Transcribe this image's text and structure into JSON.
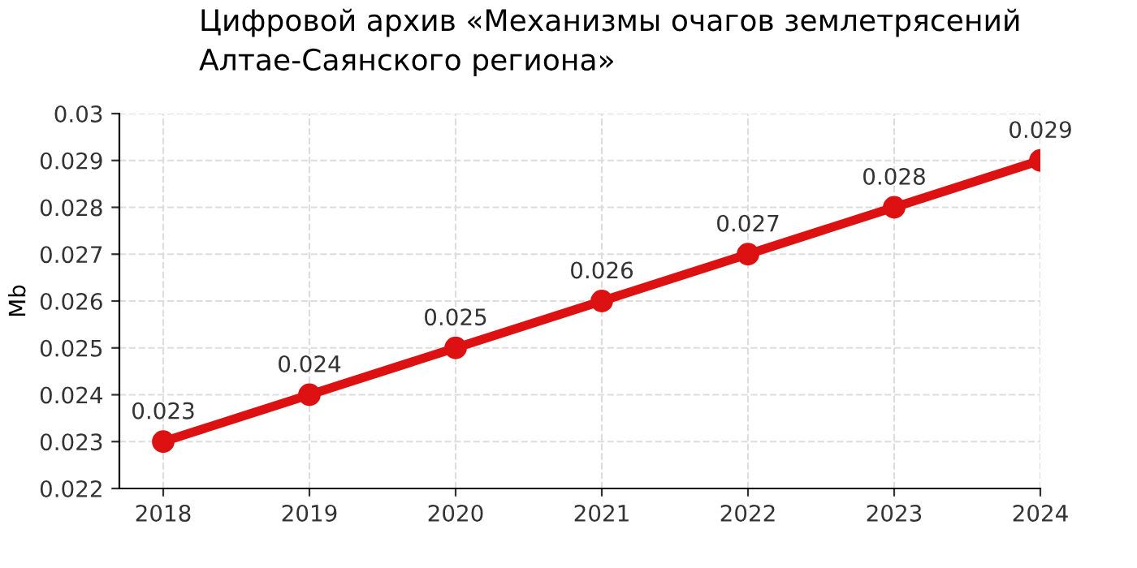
{
  "chart_data": {
    "type": "line",
    "title": "Цифровой архив «Механизмы очагов землетрясений\nАлтае-Саянского региона»",
    "ylabel": "Mb",
    "x": [
      2018,
      2019,
      2020,
      2021,
      2022,
      2023,
      2024
    ],
    "series": [
      {
        "color": "#dd1111",
        "values": [
          0.023,
          0.024,
          0.025,
          0.026,
          0.027,
          0.028,
          0.029
        ]
      }
    ],
    "xlim": [
      2017.7,
      2024
    ],
    "xticks": [
      2018,
      2019,
      2020,
      2021,
      2022,
      2023,
      2024
    ],
    "ylim": [
      0.022,
      0.03
    ],
    "yticks": [
      0.022,
      0.023,
      0.024,
      0.025,
      0.026,
      0.027,
      0.028,
      0.029,
      0.03
    ],
    "grid": true,
    "data_labels": true,
    "marker": "circle",
    "line_style": "solid"
  }
}
